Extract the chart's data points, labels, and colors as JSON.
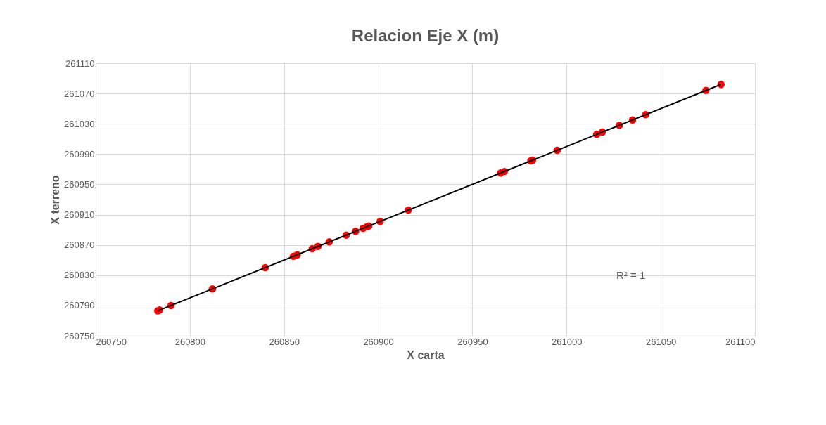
{
  "chart_data": {
    "type": "scatter",
    "title": "Relacion Eje X (m)",
    "xlabel": "X carta",
    "ylabel": "X terreno",
    "xlim": [
      260750,
      261100
    ],
    "xticks": [
      260750,
      260800,
      260850,
      260900,
      260950,
      261000,
      261050,
      261100
    ],
    "ylim": [
      260750,
      261110
    ],
    "yticks": [
      260750,
      260790,
      260830,
      260870,
      260910,
      260950,
      260990,
      261030,
      261070,
      261110
    ],
    "grid": true,
    "annotations": [
      "R² = 1"
    ],
    "series": [
      {
        "marker": "circle",
        "color": "#ff0000",
        "x": [
          260783,
          260784,
          260790,
          260812,
          260840,
          260855,
          260857,
          260865,
          260868,
          260874,
          260883,
          260888,
          260892,
          260894,
          260895,
          260901,
          260916,
          260965,
          260967,
          260981,
          260982,
          260995,
          261016,
          261019,
          261028,
          261035,
          261042,
          261074,
          261082
        ],
        "values": [
          260783,
          260784,
          260790,
          260812,
          260840,
          260855,
          260857,
          260865,
          260868,
          260874,
          260883,
          260888,
          260892,
          260894,
          260895,
          260901,
          260916,
          260965,
          260967,
          260981,
          260982,
          260995,
          261016,
          261019,
          261028,
          261035,
          261042,
          261074,
          261082
        ]
      },
      {
        "type": "line",
        "color": "#000000",
        "line_style": "solid",
        "x": [
          260783,
          261082
        ],
        "values": [
          260783,
          261082
        ]
      }
    ]
  }
}
